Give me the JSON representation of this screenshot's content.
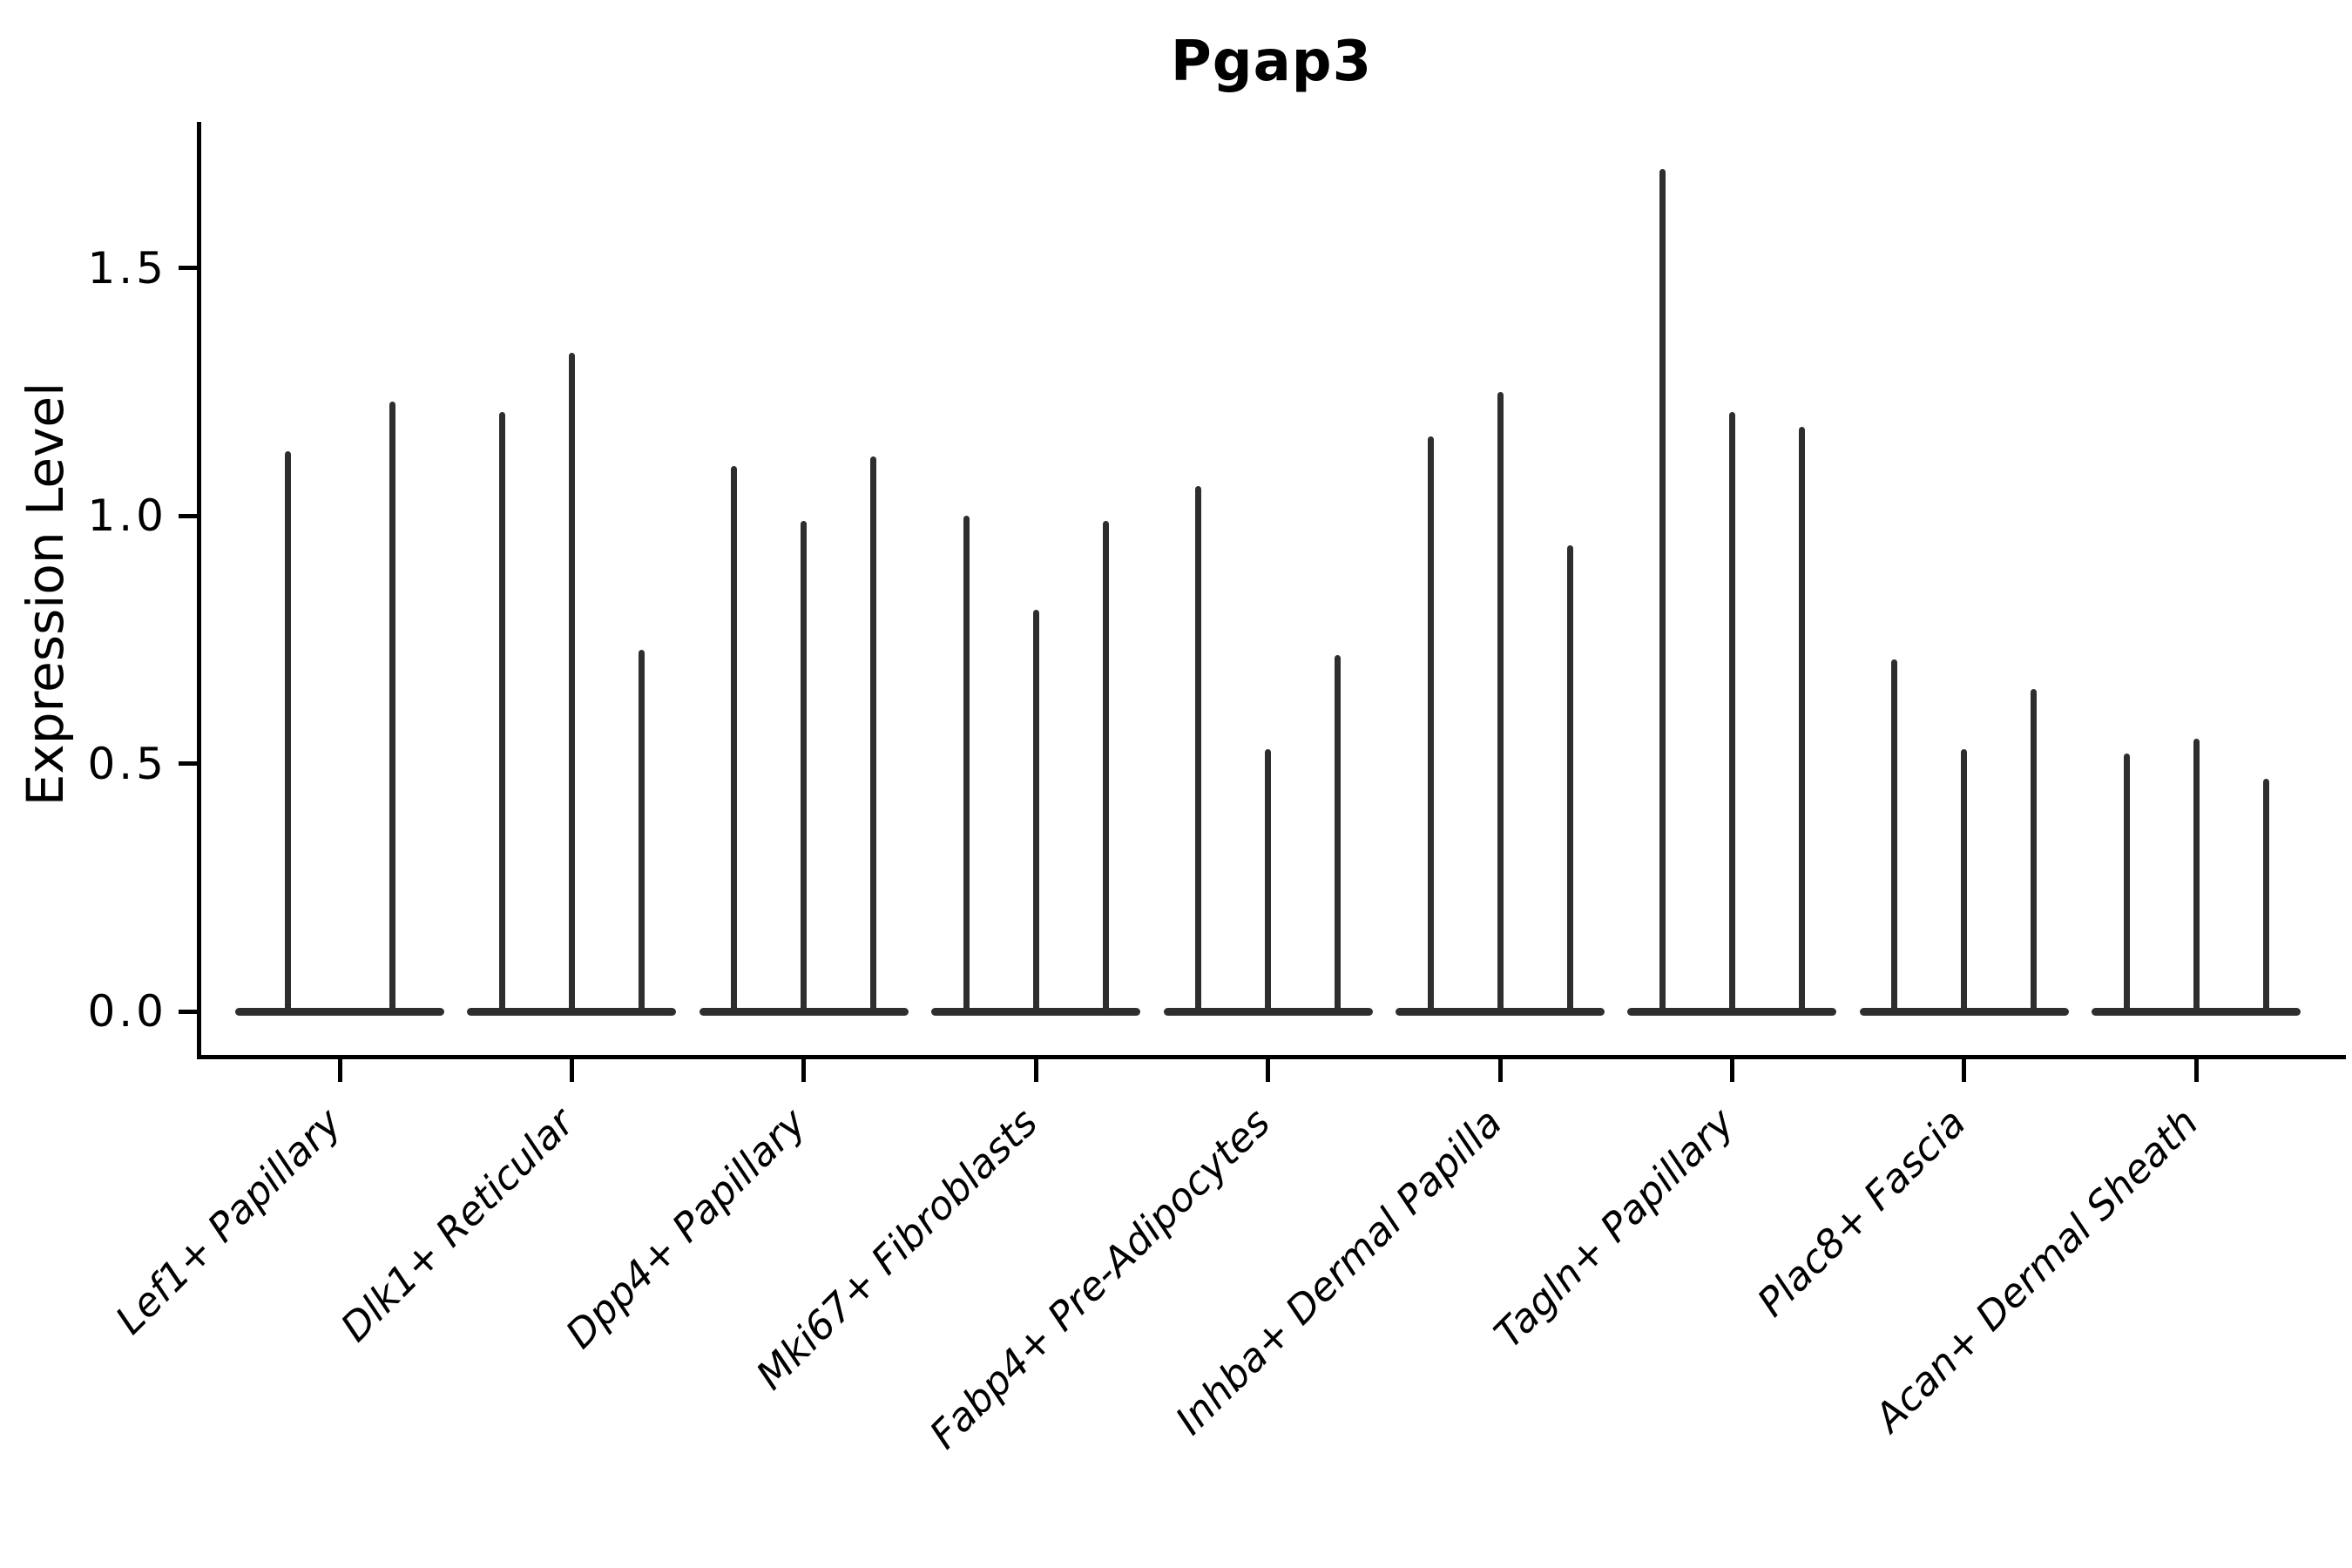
{
  "chart_data": {
    "type": "violin",
    "title": "Pgap3",
    "ylabel": "Expression Level",
    "xlabel": "",
    "legend": "none",
    "grid": false,
    "background": "#ffffff",
    "ink_color": "#000000",
    "violin_color": "#2e2e2e",
    "ylim": [
      -0.09,
      1.78
    ],
    "ytick_labels": [
      "0.0",
      "0.5",
      "1.0",
      "1.5"
    ],
    "ytick_values": [
      0.0,
      0.5,
      1.0,
      1.5
    ],
    "baseline_value": 0.0,
    "description": "Needle-shaped violins: dense mass at expression 0 with a thin tail reaching each violin maximum",
    "categories": [
      "Lef1+ Papillary",
      "Dlk1+ Reticular",
      "Dpp4+ Papillary",
      "Mki67+ Fibroblasts",
      "Fabp4+ Pre-Adipocytes",
      "Inhba+ Dermal Papilla",
      "Tagln+ Papillary",
      "Plac8+ Fascia",
      "Acan+ Dermal Sheath"
    ],
    "groups": [
      {
        "label": "Lef1+ Papillary",
        "violin_maxima": [
          1.13,
          1.23
        ]
      },
      {
        "label": "Dlk1+ Reticular",
        "violin_maxima": [
          1.21,
          1.33,
          0.73
        ]
      },
      {
        "label": "Dpp4+ Papillary",
        "violin_maxima": [
          1.1,
          0.99,
          1.12
        ]
      },
      {
        "label": "Mki67+ Fibroblasts",
        "violin_maxima": [
          1.0,
          0.81,
          0.99
        ]
      },
      {
        "label": "Fabp4+ Pre-Adipocytes",
        "violin_maxima": [
          1.06,
          0.53,
          0.72
        ]
      },
      {
        "label": "Inhba+ Dermal Papilla",
        "violin_maxima": [
          1.16,
          1.25,
          0.94
        ]
      },
      {
        "label": "Tagln+ Papillary",
        "violin_maxima": [
          1.7,
          1.21,
          1.18
        ]
      },
      {
        "label": "Plac8+ Fascia",
        "violin_maxima": [
          0.71,
          0.53,
          0.65
        ]
      },
      {
        "label": "Acan+ Dermal Sheath",
        "violin_maxima": [
          0.52,
          0.55,
          0.47
        ]
      }
    ]
  }
}
